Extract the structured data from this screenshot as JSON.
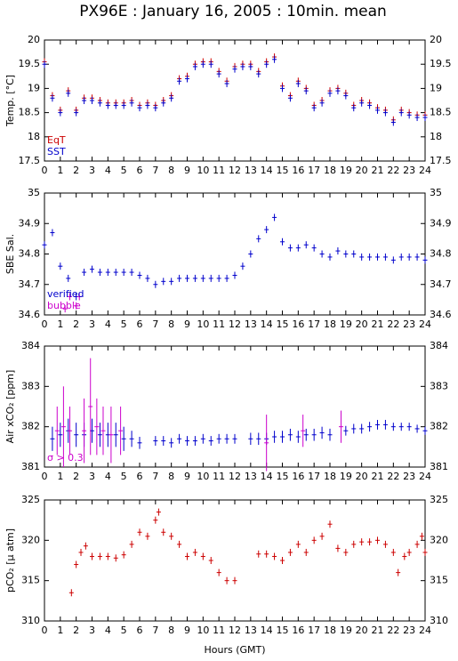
{
  "chart_data": [
    {
      "type": "scatter",
      "title": "PX96E : January 16, 2005 : 10min. mean",
      "y_label": "Temp. [°C]",
      "xlim": [
        0,
        24
      ],
      "xticks": [
        0,
        1,
        2,
        3,
        4,
        5,
        6,
        7,
        8,
        9,
        10,
        11,
        12,
        13,
        14,
        15,
        16,
        17,
        18,
        19,
        20,
        21,
        22,
        23,
        24
      ],
      "ylim": [
        17.5,
        20
      ],
      "yticks": [
        17.5,
        18,
        18.5,
        19,
        19.5,
        20
      ],
      "series": [
        {
          "name": "EqT",
          "color": "#cc0000",
          "x": [
            0,
            0.5,
            1,
            1.5,
            2,
            2.5,
            3,
            3.5,
            4,
            4.5,
            5,
            5.5,
            6,
            6.5,
            7,
            7.5,
            8,
            8.5,
            9,
            9.5,
            10,
            10.5,
            11,
            11.5,
            12,
            12.5,
            13,
            13.5,
            14,
            14.5,
            15,
            15.5,
            16,
            16.5,
            17,
            17.5,
            18,
            18.5,
            19,
            19.5,
            20,
            20.5,
            21,
            21.5,
            22,
            22.5,
            23,
            23.5,
            24
          ],
          "values": [
            19.55,
            18.85,
            18.55,
            18.95,
            18.55,
            18.8,
            18.8,
            18.75,
            18.7,
            18.7,
            18.7,
            18.75,
            18.65,
            18.7,
            18.65,
            18.75,
            18.85,
            19.2,
            19.25,
            19.5,
            19.55,
            19.55,
            19.35,
            19.15,
            19.45,
            19.5,
            19.5,
            19.35,
            19.55,
            19.65,
            19.05,
            18.85,
            19.15,
            19.0,
            18.65,
            18.75,
            18.95,
            19.0,
            18.9,
            18.65,
            18.75,
            18.7,
            18.6,
            18.55,
            18.35,
            18.55,
            18.5,
            18.45,
            18.45
          ]
        },
        {
          "name": "SST",
          "color": "#0000cc",
          "x": [
            0,
            0.5,
            1,
            1.5,
            2,
            2.5,
            3,
            3.5,
            4,
            4.5,
            5,
            5.5,
            6,
            6.5,
            7,
            7.5,
            8,
            8.5,
            9,
            9.5,
            10,
            10.5,
            11,
            11.5,
            12,
            12.5,
            13,
            13.5,
            14,
            14.5,
            15,
            15.5,
            16,
            16.5,
            17,
            17.5,
            18,
            18.5,
            19,
            19.5,
            20,
            20.5,
            21,
            21.5,
            22,
            22.5,
            23,
            23.5,
            24
          ],
          "values": [
            19.5,
            18.8,
            18.5,
            18.9,
            18.5,
            18.75,
            18.75,
            18.7,
            18.65,
            18.65,
            18.65,
            18.7,
            18.6,
            18.65,
            18.6,
            18.7,
            18.8,
            19.15,
            19.2,
            19.45,
            19.5,
            19.5,
            19.3,
            19.1,
            19.4,
            19.45,
            19.45,
            19.3,
            19.5,
            19.6,
            19.0,
            18.8,
            19.1,
            18.95,
            18.6,
            18.7,
            18.9,
            18.95,
            18.85,
            18.6,
            18.7,
            18.65,
            18.55,
            18.5,
            18.3,
            18.5,
            18.45,
            18.4,
            18.4
          ]
        }
      ]
    },
    {
      "type": "scatter",
      "y_label": "SBE Sal.",
      "xlim": [
        0,
        24
      ],
      "xticks": [
        0,
        1,
        2,
        3,
        4,
        5,
        6,
        7,
        8,
        9,
        10,
        11,
        12,
        13,
        14,
        15,
        16,
        17,
        18,
        19,
        20,
        21,
        22,
        23,
        24
      ],
      "ylim": [
        34.6,
        35
      ],
      "yticks": [
        34.6,
        34.7,
        34.8,
        34.9,
        35
      ],
      "series": [
        {
          "name": "verified",
          "color": "#0000cc",
          "x": [
            0,
            0.5,
            1,
            1.5,
            2,
            2.5,
            3,
            3.5,
            4,
            4.5,
            5,
            5.5,
            6,
            6.5,
            7,
            7.5,
            8,
            8.5,
            9,
            9.5,
            10,
            10.5,
            11,
            11.5,
            12,
            12.5,
            13,
            13.5,
            14,
            14.5,
            15,
            15.5,
            16,
            16.5,
            17,
            17.5,
            18,
            18.5,
            19,
            19.5,
            20,
            20.5,
            21,
            21.5,
            22,
            22.5,
            23,
            23.5,
            24
          ],
          "values": [
            34.83,
            34.87,
            34.76,
            34.72,
            34.66,
            34.74,
            34.75,
            34.74,
            34.74,
            34.74,
            34.74,
            34.74,
            34.73,
            34.72,
            34.7,
            34.71,
            34.71,
            34.72,
            34.72,
            34.72,
            34.72,
            34.72,
            34.72,
            34.72,
            34.73,
            34.76,
            34.8,
            34.85,
            34.88,
            34.92,
            34.84,
            34.82,
            34.82,
            34.83,
            34.82,
            34.8,
            34.79,
            34.81,
            34.8,
            34.8,
            34.79,
            34.79,
            34.79,
            34.79,
            34.78,
            34.79,
            34.79,
            34.79,
            34.78
          ]
        },
        {
          "name": "bubble",
          "color": "#cc00cc",
          "x": [
            1.3,
            1.6,
            2.0,
            2.2
          ],
          "values": [
            34.62,
            34.66,
            34.63,
            34.66
          ]
        }
      ]
    },
    {
      "type": "scatter",
      "y_label": "Air xCO₂ [ppm]",
      "xlim": [
        0,
        24
      ],
      "xticks": [
        0,
        1,
        2,
        3,
        4,
        5,
        6,
        7,
        8,
        9,
        10,
        11,
        12,
        13,
        14,
        15,
        16,
        17,
        18,
        19,
        20,
        21,
        22,
        23,
        24
      ],
      "ylim": [
        381,
        384
      ],
      "yticks": [
        381,
        382,
        383,
        384
      ],
      "series": [
        {
          "color": "#0000cc",
          "x": [
            0.5,
            1,
            1.5,
            2,
            2.5,
            3,
            3.5,
            4,
            4.5,
            5,
            5.5,
            6,
            7,
            7.5,
            8,
            8.5,
            9,
            9.5,
            10,
            10.5,
            11,
            11.5,
            12,
            13,
            13.5,
            14,
            14.5,
            15,
            15.5,
            16,
            16.5,
            17,
            17.5,
            18,
            19,
            19.5,
            20,
            20.5,
            21,
            21.5,
            22,
            22.5,
            23,
            23.5,
            24
          ],
          "values": [
            381.7,
            381.8,
            381.9,
            381.8,
            381.8,
            381.9,
            381.8,
            381.8,
            381.8,
            381.7,
            381.7,
            381.6,
            381.65,
            381.65,
            381.6,
            381.7,
            381.65,
            381.65,
            381.7,
            381.65,
            381.7,
            381.7,
            381.7,
            381.7,
            381.7,
            381.7,
            381.75,
            381.75,
            381.8,
            381.75,
            381.8,
            381.8,
            381.85,
            381.8,
            381.9,
            381.95,
            381.95,
            382.0,
            382.05,
            382.05,
            382.0,
            382.0,
            382.0,
            381.95,
            381.9
          ],
          "errors": [
            0.3,
            0.3,
            0.3,
            0.3,
            0.3,
            0.3,
            0.3,
            0.3,
            0.3,
            0.3,
            0.2,
            0.15,
            0.12,
            0.12,
            0.12,
            0.12,
            0.12,
            0.12,
            0.12,
            0.12,
            0.12,
            0.12,
            0.12,
            0.15,
            0.15,
            0.15,
            0.15,
            0.15,
            0.15,
            0.15,
            0.15,
            0.15,
            0.15,
            0.15,
            0.12,
            0.12,
            0.12,
            0.12,
            0.12,
            0.12,
            0.1,
            0.1,
            0.1,
            0.1,
            0.1
          ]
        },
        {
          "name": "σ > 0.3",
          "color": "#cc00cc",
          "x": [
            0.8,
            1.2,
            1.6,
            2.5,
            2.9,
            3.3,
            3.7,
            4.2,
            4.8,
            14.0,
            16.3,
            18.7
          ],
          "values": [
            381.9,
            382.0,
            381.9,
            381.9,
            382.5,
            382.0,
            381.9,
            381.8,
            381.9,
            381.6,
            381.9,
            382.0
          ],
          "errors": [
            0.6,
            1.0,
            0.6,
            0.8,
            1.2,
            0.7,
            0.6,
            0.7,
            0.6,
            0.7,
            0.4,
            0.4
          ]
        }
      ]
    },
    {
      "type": "scatter",
      "y_label": "pCO₂ [µ atm]",
      "x_label": "Hours (GMT)",
      "xlim": [
        0,
        24
      ],
      "xticks": [
        0,
        1,
        2,
        3,
        4,
        5,
        6,
        7,
        8,
        9,
        10,
        11,
        12,
        13,
        14,
        15,
        16,
        17,
        18,
        19,
        20,
        21,
        22,
        23,
        24
      ],
      "ylim": [
        310,
        325
      ],
      "yticks": [
        310,
        315,
        320,
        325
      ],
      "series": [
        {
          "color": "#cc0000",
          "x": [
            1.7,
            2,
            2.3,
            2.6,
            3,
            3.5,
            4,
            4.5,
            5,
            5.5,
            6,
            6.5,
            7,
            7.2,
            7.5,
            8,
            8.5,
            9,
            9.5,
            10,
            10.5,
            11,
            11.5,
            12,
            13.5,
            14,
            14.5,
            15,
            15.5,
            16,
            16.5,
            17,
            17.5,
            18,
            18.5,
            19,
            19.5,
            20,
            20.5,
            21,
            21.5,
            22,
            22.3,
            22.7,
            23,
            23.5,
            23.8,
            24
          ],
          "values": [
            313.5,
            317,
            318.5,
            319.3,
            318,
            318,
            318,
            317.8,
            318.2,
            319.5,
            321,
            320.5,
            322.5,
            323.5,
            321,
            320.5,
            319.5,
            318,
            318.5,
            318,
            317.5,
            316,
            315,
            315,
            318.3,
            318.3,
            318,
            317.5,
            318.5,
            319.5,
            318.5,
            320,
            320.5,
            322,
            319,
            318.5,
            319.5,
            319.8,
            319.8,
            320,
            319.5,
            318.5,
            316,
            318,
            318.5,
            319.5,
            320.5,
            318.5
          ]
        }
      ]
    }
  ]
}
